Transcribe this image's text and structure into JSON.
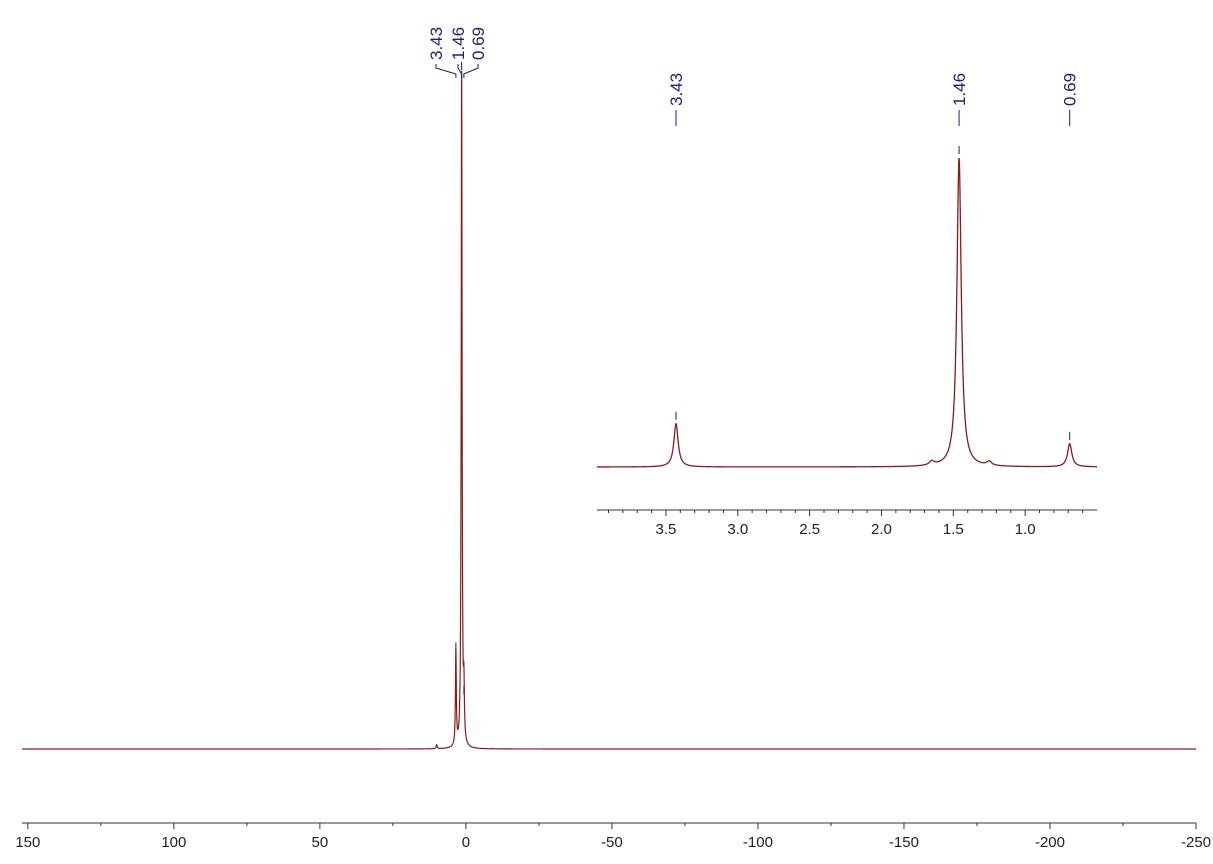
{
  "chart_data": [
    {
      "type": "line",
      "name": "main-spectrum",
      "title": "",
      "xlabel": "",
      "ylabel": "",
      "x_direction": "descending",
      "xlim": [
        152,
        -250
      ],
      "xticks_major": [
        150,
        100,
        50,
        0,
        -50,
        -100,
        -150,
        -200,
        -250
      ],
      "xticks_minor": [
        125,
        75,
        25,
        -25,
        -75,
        -125,
        -175,
        -225
      ],
      "grid": false,
      "line_color": "#8B1A1A",
      "peak_color": "#1A1A8B",
      "peaks": [
        {
          "ppm": 3.43,
          "label": "3.43",
          "height": 0.14
        },
        {
          "ppm": 1.46,
          "label": "1.46",
          "height": 1.0
        },
        {
          "ppm": 0.69,
          "label": "0.69",
          "height": 0.075
        }
      ],
      "minor_peaks": [
        {
          "ppm": 10.0,
          "height": 0.006
        }
      ]
    },
    {
      "type": "line",
      "name": "inset-spectrum",
      "title": "",
      "xlabel": "",
      "ylabel": "",
      "x_direction": "descending",
      "xlim": [
        3.98,
        0.5
      ],
      "xticks_major": [
        3.5,
        3.0,
        2.5,
        2.0,
        1.5,
        1.0
      ],
      "xtick_labels": [
        "3.5",
        "3.0",
        "2.5",
        "2.0",
        "1.5",
        "1.0"
      ],
      "grid": false,
      "line_color": "#8B1A1A",
      "peak_color": "#1A1A8B",
      "peaks": [
        {
          "ppm": 3.43,
          "label": "3.43",
          "height": 0.14
        },
        {
          "ppm": 1.46,
          "label": "1.46",
          "height": 1.0
        },
        {
          "ppm": 0.69,
          "label": "0.69",
          "height": 0.075
        }
      ],
      "minor_peaks": [
        {
          "ppm": 1.65,
          "height": 0.013
        },
        {
          "ppm": 1.25,
          "height": 0.013
        }
      ]
    }
  ]
}
